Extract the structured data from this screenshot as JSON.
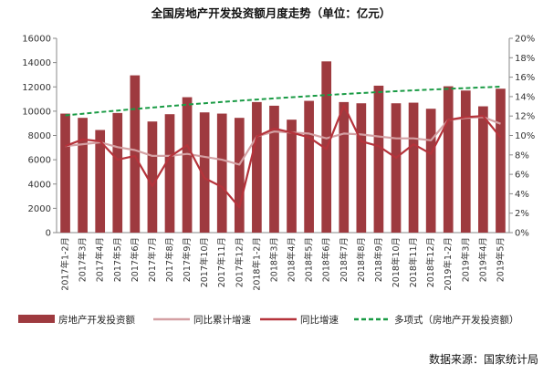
{
  "chart_data": {
    "type": "bar",
    "title": "全国房地产开发投资额月度走势（单位：亿元）",
    "source": "数据来源：国家统计局",
    "categories": [
      "2017年1-2月",
      "2017年3月",
      "2017年4月",
      "2017年5月",
      "2017年6月",
      "2017年7月",
      "2017年8月",
      "2017年9月",
      "2017年10月",
      "2017年11月",
      "2017年12月",
      "2018年1-2月",
      "2018年3月",
      "2018年4月",
      "2018年5月",
      "2018年6月",
      "2018年7月",
      "2018年8月",
      "2018年9月",
      "2018年10月",
      "2018年11月",
      "2018年12月",
      "2019年1-2月",
      "2019年3月",
      "2019年4月",
      "2019年5月"
    ],
    "y_left": {
      "min": 0,
      "max": 16000,
      "ticks": [
        "0",
        "2000",
        "4000",
        "6000",
        "8000",
        "10000",
        "12000",
        "14000",
        "16000"
      ]
    },
    "y_right": {
      "min": 0,
      "max": 20,
      "ticks": [
        "0%",
        "2%",
        "4%",
        "6%",
        "8%",
        "10%",
        "12%",
        "14%",
        "16%",
        "18%",
        "20%"
      ]
    },
    "series": [
      {
        "name": "房地产开发投资额",
        "kind": "bar",
        "axis": "left",
        "color": "#9e3a3f",
        "values": [
          9800,
          9450,
          8450,
          9850,
          12950,
          9150,
          9750,
          11150,
          9900,
          9800,
          9450,
          10750,
          10450,
          9300,
          10850,
          14100,
          10750,
          10650,
          12100,
          10650,
          10700,
          10200,
          12050,
          11700,
          10400,
          11850
        ]
      },
      {
        "name": "同比累计增速",
        "kind": "line",
        "axis": "right",
        "color": "#d4a0a3",
        "values": [
          8.9,
          9.1,
          9.3,
          8.8,
          8.5,
          7.9,
          7.9,
          8.1,
          7.8,
          7.5,
          7.0,
          9.9,
          10.4,
          10.3,
          10.2,
          9.7,
          10.2,
          10.1,
          9.9,
          9.7,
          9.7,
          9.5,
          11.6,
          11.8,
          11.9,
          11.2
        ]
      },
      {
        "name": "同比增速",
        "kind": "line",
        "axis": "right",
        "color": "#b5333b",
        "values": [
          8.9,
          9.6,
          9.4,
          7.5,
          7.9,
          4.8,
          7.8,
          9.0,
          5.6,
          4.7,
          2.6,
          9.9,
          10.7,
          10.3,
          9.8,
          8.6,
          13.1,
          9.4,
          8.9,
          7.7,
          9.1,
          8.1,
          11.6,
          11.9,
          12.0,
          9.8
        ]
      },
      {
        "name": "多项式（房地产开发投资额）",
        "kind": "trend",
        "axis": "left",
        "color": "#1a9b45",
        "values": [
          9650,
          9790,
          9920,
          10050,
          10180,
          10300,
          10420,
          10540,
          10650,
          10760,
          10860,
          10960,
          11060,
          11150,
          11240,
          11330,
          11410,
          11490,
          11570,
          11640,
          11710,
          11780,
          11840,
          11900,
          11960,
          12020
        ]
      }
    ],
    "legend_position": "bottom",
    "grid": false
  }
}
